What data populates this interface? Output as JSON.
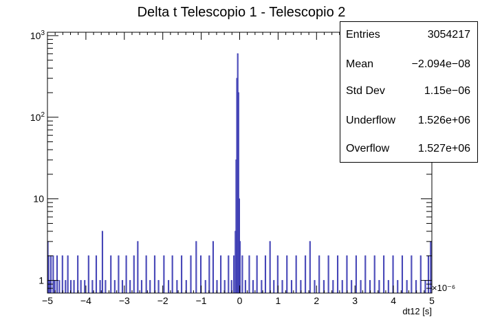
{
  "chart_data": {
    "type": "bar",
    "title": "Delta t Telescopio 1 - Telescopio 2",
    "xlabel": "dt12 [s]",
    "ylabel": "",
    "x_exponent": "×10⁻⁶",
    "xlim": [
      -5,
      5
    ],
    "ylim": [
      0.7,
      1100
    ],
    "y_scale": "log",
    "x_ticks": [
      "−5",
      "−4",
      "−3",
      "−2",
      "−1",
      "0",
      "1",
      "2",
      "3",
      "4",
      "5"
    ],
    "y_ticks": [
      {
        "base": "1",
        "exp": ""
      },
      {
        "base": "10",
        "exp": ""
      },
      {
        "base": "10",
        "exp": "2"
      },
      {
        "base": "10",
        "exp": "3"
      }
    ],
    "grid": false,
    "line_color": "#3b3bb3",
    "bin_width": 0.02,
    "bins": [
      {
        "x": -5.0,
        "y": 3
      },
      {
        "x": -4.98,
        "y": 2
      },
      {
        "x": -4.96,
        "y": 1
      },
      {
        "x": -4.92,
        "y": 2
      },
      {
        "x": -4.86,
        "y": 2
      },
      {
        "x": -4.82,
        "y": 1
      },
      {
        "x": -4.76,
        "y": 2
      },
      {
        "x": -4.7,
        "y": 1
      },
      {
        "x": -4.62,
        "y": 2
      },
      {
        "x": -4.54,
        "y": 1
      },
      {
        "x": -4.48,
        "y": 2
      },
      {
        "x": -4.4,
        "y": 1
      },
      {
        "x": -4.32,
        "y": 1
      },
      {
        "x": -4.22,
        "y": 2
      },
      {
        "x": -4.14,
        "y": 1
      },
      {
        "x": -4.04,
        "y": 1
      },
      {
        "x": -3.94,
        "y": 2
      },
      {
        "x": -3.84,
        "y": 1
      },
      {
        "x": -3.74,
        "y": 2
      },
      {
        "x": -3.64,
        "y": 1
      },
      {
        "x": -3.58,
        "y": 4
      },
      {
        "x": -3.5,
        "y": 1
      },
      {
        "x": -3.36,
        "y": 2
      },
      {
        "x": -3.26,
        "y": 1
      },
      {
        "x": -3.16,
        "y": 2
      },
      {
        "x": -3.06,
        "y": 1
      },
      {
        "x": -2.96,
        "y": 2
      },
      {
        "x": -2.86,
        "y": 1
      },
      {
        "x": -2.76,
        "y": 2
      },
      {
        "x": -2.66,
        "y": 3
      },
      {
        "x": -2.56,
        "y": 1
      },
      {
        "x": -2.44,
        "y": 2
      },
      {
        "x": -2.34,
        "y": 1
      },
      {
        "x": -2.22,
        "y": 2
      },
      {
        "x": -2.12,
        "y": 1
      },
      {
        "x": -1.98,
        "y": 2
      },
      {
        "x": -1.86,
        "y": 1
      },
      {
        "x": -1.76,
        "y": 2
      },
      {
        "x": -1.64,
        "y": 1
      },
      {
        "x": -1.52,
        "y": 2
      },
      {
        "x": -1.4,
        "y": 1
      },
      {
        "x": -1.28,
        "y": 2
      },
      {
        "x": -1.14,
        "y": 3
      },
      {
        "x": -1.02,
        "y": 2
      },
      {
        "x": -0.9,
        "y": 1
      },
      {
        "x": -0.8,
        "y": 2
      },
      {
        "x": -0.7,
        "y": 3
      },
      {
        "x": -0.6,
        "y": 1
      },
      {
        "x": -0.5,
        "y": 2
      },
      {
        "x": -0.4,
        "y": 1
      },
      {
        "x": -0.3,
        "y": 2
      },
      {
        "x": -0.22,
        "y": 1
      },
      {
        "x": -0.16,
        "y": 2
      },
      {
        "x": -0.12,
        "y": 4
      },
      {
        "x": -0.1,
        "y": 30
      },
      {
        "x": -0.08,
        "y": 300
      },
      {
        "x": -0.06,
        "y": 600
      },
      {
        "x": -0.04,
        "y": 200
      },
      {
        "x": -0.02,
        "y": 10
      },
      {
        "x": 0.0,
        "y": 3
      },
      {
        "x": 0.06,
        "y": 2
      },
      {
        "x": 0.14,
        "y": 1
      },
      {
        "x": 0.24,
        "y": 2
      },
      {
        "x": 0.34,
        "y": 1
      },
      {
        "x": 0.44,
        "y": 2
      },
      {
        "x": 0.56,
        "y": 1
      },
      {
        "x": 0.66,
        "y": 2
      },
      {
        "x": 0.78,
        "y": 3
      },
      {
        "x": 0.88,
        "y": 1
      },
      {
        "x": 0.98,
        "y": 2
      },
      {
        "x": 1.1,
        "y": 1
      },
      {
        "x": 1.22,
        "y": 2
      },
      {
        "x": 1.34,
        "y": 1
      },
      {
        "x": 1.46,
        "y": 2
      },
      {
        "x": 1.58,
        "y": 1
      },
      {
        "x": 1.7,
        "y": 2
      },
      {
        "x": 1.82,
        "y": 3
      },
      {
        "x": 1.94,
        "y": 1
      },
      {
        "x": 2.06,
        "y": 2
      },
      {
        "x": 2.18,
        "y": 1
      },
      {
        "x": 2.3,
        "y": 2
      },
      {
        "x": 2.42,
        "y": 1
      },
      {
        "x": 2.54,
        "y": 2
      },
      {
        "x": 2.66,
        "y": 1
      },
      {
        "x": 2.78,
        "y": 2
      },
      {
        "x": 2.9,
        "y": 1
      },
      {
        "x": 3.02,
        "y": 2
      },
      {
        "x": 3.14,
        "y": 1
      },
      {
        "x": 3.26,
        "y": 2
      },
      {
        "x": 3.38,
        "y": 1
      },
      {
        "x": 3.5,
        "y": 2
      },
      {
        "x": 3.62,
        "y": 1
      },
      {
        "x": 3.74,
        "y": 2
      },
      {
        "x": 3.86,
        "y": 1
      },
      {
        "x": 3.98,
        "y": 2
      },
      {
        "x": 4.1,
        "y": 1
      },
      {
        "x": 4.22,
        "y": 2
      },
      {
        "x": 4.34,
        "y": 1
      },
      {
        "x": 4.46,
        "y": 2
      },
      {
        "x": 4.58,
        "y": 1
      },
      {
        "x": 4.7,
        "y": 2
      },
      {
        "x": 4.82,
        "y": 1
      },
      {
        "x": 4.9,
        "y": 2
      },
      {
        "x": 4.96,
        "y": 3
      }
    ]
  },
  "stats": [
    {
      "name": "Entries",
      "value": "3054217"
    },
    {
      "name": "Mean",
      "value": "−2.094e−08"
    },
    {
      "name": "Std Dev",
      "value": "1.15e−06"
    },
    {
      "name": "Underflow",
      "value": "1.526e+06"
    },
    {
      "name": "Overflow",
      "value": "1.527e+06"
    }
  ]
}
